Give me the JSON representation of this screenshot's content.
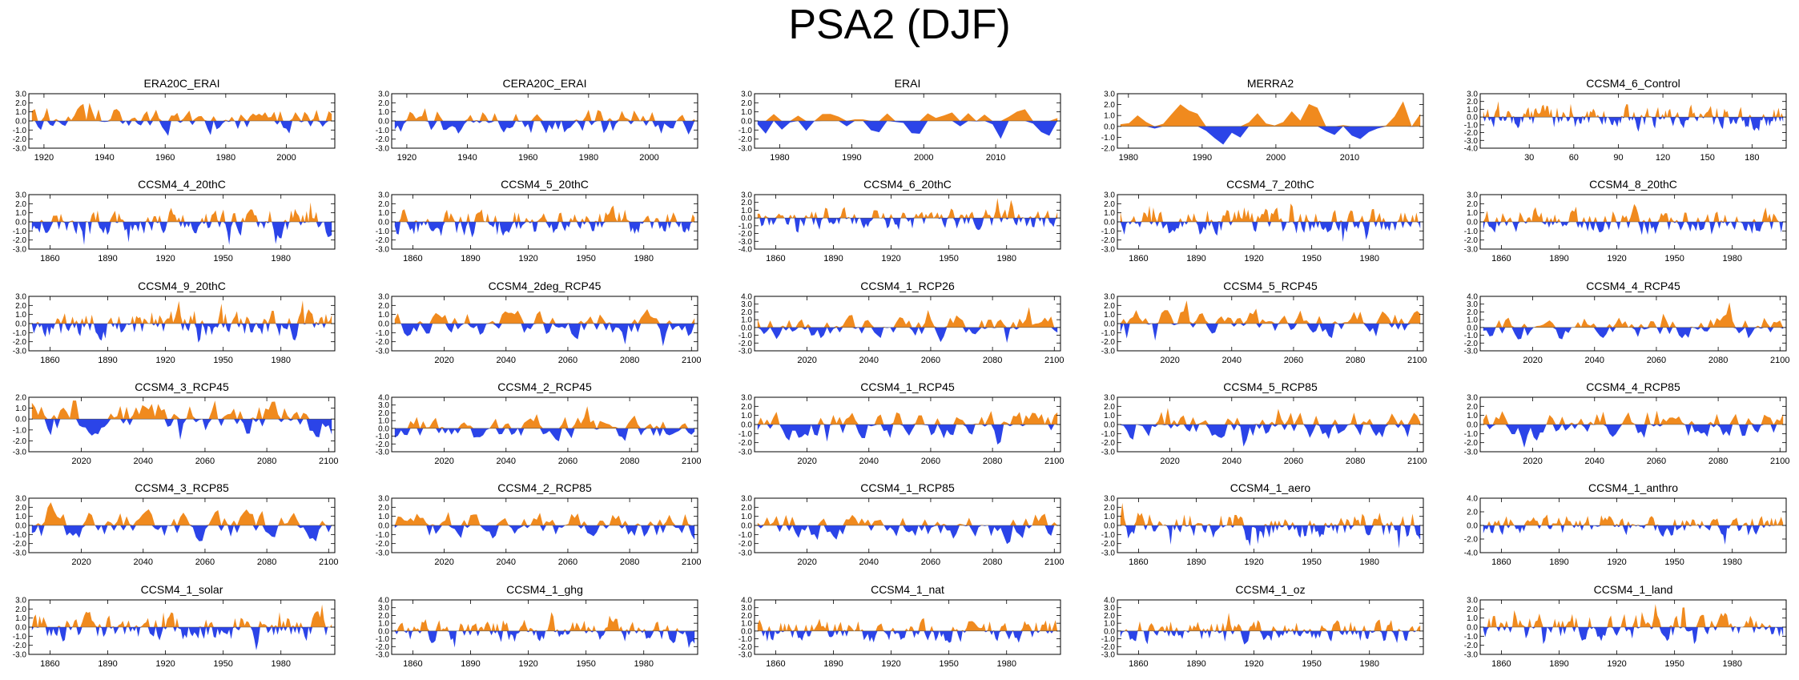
{
  "title": "PSA2 (DJF)",
  "colors": {
    "positive": "#f08a1e",
    "negative": "#2b44e8",
    "axis": "#000000"
  },
  "chart_data": [
    {
      "type": "area",
      "title": "ERA20C_ERAI",
      "xticks": [
        "1920",
        "1940",
        "1960",
        "1980",
        "2000"
      ],
      "xlim": [
        1915,
        2016
      ],
      "yticks": [
        "3.0",
        "2.0",
        "1.0",
        "0.0",
        "-1.0",
        "-2.0",
        "-3.0"
      ],
      "ylim": [
        -3,
        3
      ],
      "seed": 11,
      "n": 100
    },
    {
      "type": "area",
      "title": "CERA20C_ERAI",
      "xticks": [
        "1920",
        "1940",
        "1960",
        "1980",
        "2000"
      ],
      "xlim": [
        1915,
        2016
      ],
      "yticks": [
        "3.0",
        "2.0",
        "1.0",
        "0.0",
        "-1.0",
        "-2.0",
        "-3.0"
      ],
      "ylim": [
        -3,
        3
      ],
      "seed": 12,
      "n": 100
    },
    {
      "type": "area",
      "title": "ERAI",
      "xticks": [
        "1980",
        "1990",
        "2000",
        "2010"
      ],
      "xlim": [
        1976.5,
        2019
      ],
      "yticks": [
        "3.0",
        "2.0",
        "1.0",
        "0.0",
        "-1.0",
        "-2.0",
        "-3.0"
      ],
      "ylim": [
        -3,
        3
      ],
      "seed": 13,
      "n": 38
    },
    {
      "type": "area",
      "title": "MERRA2",
      "xticks": [
        "1980",
        "1990",
        "2000",
        "2010"
      ],
      "xlim": [
        1978.5,
        2020
      ],
      "yticks": [
        "3.0",
        "2.0",
        "1.0",
        "0.0",
        "-1.0",
        "-2.0"
      ],
      "ylim": [
        -2,
        3
      ],
      "seed": 14,
      "n": 36
    },
    {
      "type": "area",
      "title": "CCSM4_6_Control",
      "xticks": [
        "30",
        "60",
        "90",
        "120",
        "150",
        "180"
      ],
      "xlim": [
        -3,
        203
      ],
      "yticks": [
        "3.0",
        "2.0",
        "1.0",
        "0.0",
        "-1.0",
        "-2.0",
        "-3.0",
        "-4.0"
      ],
      "ylim": [
        -4,
        3
      ],
      "seed": 15,
      "n": 200
    },
    {
      "type": "area",
      "title": "CCSM4_4_20thC",
      "xticks": [
        "1860",
        "1890",
        "1920",
        "1950",
        "1980"
      ],
      "xlim": [
        1849,
        2008
      ],
      "yticks": [
        "3.0",
        "2.0",
        "1.0",
        "0.0",
        "-1.0",
        "-2.0",
        "-3.0"
      ],
      "ylim": [
        -3,
        3
      ],
      "seed": 21,
      "n": 156
    },
    {
      "type": "area",
      "title": "CCSM4_5_20thC",
      "xticks": [
        "1860",
        "1890",
        "1920",
        "1950",
        "1980"
      ],
      "xlim": [
        1849,
        2008
      ],
      "yticks": [
        "3.0",
        "2.0",
        "1.0",
        "0.0",
        "-1.0",
        "-2.0",
        "-3.0"
      ],
      "ylim": [
        -3,
        3
      ],
      "seed": 22,
      "n": 156
    },
    {
      "type": "area",
      "title": "CCSM4_6_20thC",
      "xticks": [
        "1860",
        "1890",
        "1920",
        "1950",
        "1980"
      ],
      "xlim": [
        1849,
        2008
      ],
      "yticks": [
        "3.0",
        "2.0",
        "1.0",
        "0.0",
        "-1.0",
        "-2.0",
        "-3.0",
        "-4.0"
      ],
      "ylim": [
        -4,
        3
      ],
      "seed": 23,
      "n": 156
    },
    {
      "type": "area",
      "title": "CCSM4_7_20thC",
      "xticks": [
        "1860",
        "1890",
        "1920",
        "1950",
        "1980"
      ],
      "xlim": [
        1849,
        2008
      ],
      "yticks": [
        "3.0",
        "2.0",
        "1.0",
        "0.0",
        "-1.0",
        "-2.0",
        "-3.0"
      ],
      "ylim": [
        -3,
        3
      ],
      "seed": 24,
      "n": 156
    },
    {
      "type": "area",
      "title": "CCSM4_8_20thC",
      "xticks": [
        "1860",
        "1890",
        "1920",
        "1950",
        "1980"
      ],
      "xlim": [
        1849,
        2008
      ],
      "yticks": [
        "3.0",
        "2.0",
        "1.0",
        "0.0",
        "-1.0",
        "-2.0",
        "-3.0"
      ],
      "ylim": [
        -3,
        3
      ],
      "seed": 25,
      "n": 156
    },
    {
      "type": "area",
      "title": "CCSM4_9_20thC",
      "xticks": [
        "1860",
        "1890",
        "1920",
        "1950",
        "1980"
      ],
      "xlim": [
        1849,
        2008
      ],
      "yticks": [
        "3.0",
        "2.0",
        "1.0",
        "0.0",
        "-1.0",
        "-2.0",
        "-3.0"
      ],
      "ylim": [
        -3,
        3
      ],
      "seed": 31,
      "n": 156
    },
    {
      "type": "area",
      "title": "CCSM4_2deg_RCP45",
      "xticks": [
        "2020",
        "2040",
        "2060",
        "2080",
        "2100"
      ],
      "xlim": [
        2003,
        2102
      ],
      "yticks": [
        "3.0",
        "2.0",
        "1.0",
        "0.0",
        "-1.0",
        "-2.0",
        "-3.0"
      ],
      "ylim": [
        -3,
        3
      ],
      "seed": 32,
      "n": 96
    },
    {
      "type": "area",
      "title": "CCSM4_1_RCP26",
      "xticks": [
        "2020",
        "2040",
        "2060",
        "2080",
        "2100"
      ],
      "xlim": [
        2003,
        2102
      ],
      "yticks": [
        "4.0",
        "3.0",
        "2.0",
        "1.0",
        "0.0",
        "-1.0",
        "-2.0",
        "-3.0"
      ],
      "ylim": [
        -3,
        4
      ],
      "seed": 33,
      "n": 96
    },
    {
      "type": "area",
      "title": "CCSM4_5_RCP45",
      "xticks": [
        "2020",
        "2040",
        "2060",
        "2080",
        "2100"
      ],
      "xlim": [
        2003,
        2102
      ],
      "yticks": [
        "3.0",
        "2.0",
        "1.0",
        "0.0",
        "-1.0",
        "-2.0",
        "-3.0"
      ],
      "ylim": [
        -3,
        3
      ],
      "seed": 34,
      "n": 96
    },
    {
      "type": "area",
      "title": "CCSM4_4_RCP45",
      "xticks": [
        "2020",
        "2040",
        "2060",
        "2080",
        "2100"
      ],
      "xlim": [
        2003,
        2102
      ],
      "yticks": [
        "4.0",
        "3.0",
        "2.0",
        "1.0",
        "0.0",
        "-1.0",
        "-2.0",
        "-3.0"
      ],
      "ylim": [
        -3,
        4
      ],
      "seed": 35,
      "n": 96
    },
    {
      "type": "area",
      "title": "CCSM4_3_RCP45",
      "xticks": [
        "2020",
        "2040",
        "2060",
        "2080",
        "2100"
      ],
      "xlim": [
        2003,
        2102
      ],
      "yticks": [
        "2.0",
        "1.0",
        "0.0",
        "-1.0",
        "-2.0",
        "-3.0"
      ],
      "ylim": [
        -3,
        2
      ],
      "seed": 41,
      "n": 96
    },
    {
      "type": "area",
      "title": "CCSM4_2_RCP45",
      "xticks": [
        "2020",
        "2040",
        "2060",
        "2080",
        "2100"
      ],
      "xlim": [
        2003,
        2102
      ],
      "yticks": [
        "4.0",
        "3.0",
        "2.0",
        "1.0",
        "0.0",
        "-1.0",
        "-2.0",
        "-3.0"
      ],
      "ylim": [
        -3,
        4
      ],
      "seed": 42,
      "n": 96
    },
    {
      "type": "area",
      "title": "CCSM4_1_RCP45",
      "xticks": [
        "2020",
        "2040",
        "2060",
        "2080",
        "2100"
      ],
      "xlim": [
        2003,
        2102
      ],
      "yticks": [
        "3.0",
        "2.0",
        "1.0",
        "0.0",
        "-1.0",
        "-2.0",
        "-3.0"
      ],
      "ylim": [
        -3,
        3
      ],
      "seed": 43,
      "n": 96
    },
    {
      "type": "area",
      "title": "CCSM4_5_RCP85",
      "xticks": [
        "2020",
        "2040",
        "2060",
        "2080",
        "2100"
      ],
      "xlim": [
        2003,
        2102
      ],
      "yticks": [
        "3.0",
        "2.0",
        "1.0",
        "0.0",
        "-1.0",
        "-2.0",
        "-3.0"
      ],
      "ylim": [
        -3,
        3
      ],
      "seed": 44,
      "n": 96
    },
    {
      "type": "area",
      "title": "CCSM4_4_RCP85",
      "xticks": [
        "2020",
        "2040",
        "2060",
        "2080",
        "2100"
      ],
      "xlim": [
        2003,
        2102
      ],
      "yticks": [
        "3.0",
        "2.0",
        "1.0",
        "0.0",
        "-1.0",
        "-2.0",
        "-3.0"
      ],
      "ylim": [
        -3,
        3
      ],
      "seed": 45,
      "n": 96
    },
    {
      "type": "area",
      "title": "CCSM4_3_RCP85",
      "xticks": [
        "2020",
        "2040",
        "2060",
        "2080",
        "2100"
      ],
      "xlim": [
        2003,
        2102
      ],
      "yticks": [
        "3.0",
        "2.0",
        "1.0",
        "0.0",
        "-1.0",
        "-2.0",
        "-3.0"
      ],
      "ylim": [
        -3,
        3
      ],
      "seed": 51,
      "n": 96
    },
    {
      "type": "area",
      "title": "CCSM4_2_RCP85",
      "xticks": [
        "2020",
        "2040",
        "2060",
        "2080",
        "2100"
      ],
      "xlim": [
        2003,
        2102
      ],
      "yticks": [
        "3.0",
        "2.0",
        "1.0",
        "0.0",
        "-1.0",
        "-2.0",
        "-3.0"
      ],
      "ylim": [
        -3,
        3
      ],
      "seed": 52,
      "n": 96
    },
    {
      "type": "area",
      "title": "CCSM4_1_RCP85",
      "xticks": [
        "2020",
        "2040",
        "2060",
        "2080",
        "2100"
      ],
      "xlim": [
        2003,
        2102
      ],
      "yticks": [
        "3.0",
        "2.0",
        "1.0",
        "0.0",
        "-1.0",
        "-2.0",
        "-3.0"
      ],
      "ylim": [
        -3,
        3
      ],
      "seed": 53,
      "n": 96
    },
    {
      "type": "area",
      "title": "CCSM4_1_aero",
      "xticks": [
        "1860",
        "1890",
        "1920",
        "1950",
        "1980"
      ],
      "xlim": [
        1849,
        2008
      ],
      "yticks": [
        "3.0",
        "2.0",
        "1.0",
        "0.0",
        "-1.0",
        "-2.0",
        "-3.0"
      ],
      "ylim": [
        -3,
        3
      ],
      "seed": 54,
      "n": 156
    },
    {
      "type": "area",
      "title": "CCSM4_1_anthro",
      "xticks": [
        "1860",
        "1890",
        "1920",
        "1950",
        "1980"
      ],
      "xlim": [
        1849,
        2008
      ],
      "yticks": [
        "4.0",
        "2.0",
        "0.0",
        "-2.0",
        "-4.0"
      ],
      "ylim": [
        -4,
        4
      ],
      "seed": 55,
      "n": 156
    },
    {
      "type": "area",
      "title": "CCSM4_1_solar",
      "xticks": [
        "1860",
        "1890",
        "1920",
        "1950",
        "1980"
      ],
      "xlim": [
        1849,
        2008
      ],
      "yticks": [
        "3.0",
        "2.0",
        "1.0",
        "0.0",
        "-1.0",
        "-2.0",
        "-3.0"
      ],
      "ylim": [
        -3,
        3
      ],
      "seed": 61,
      "n": 156
    },
    {
      "type": "area",
      "title": "CCSM4_1_ghg",
      "xticks": [
        "1860",
        "1890",
        "1920",
        "1950",
        "1980"
      ],
      "xlim": [
        1849,
        2008
      ],
      "yticks": [
        "4.0",
        "3.0",
        "2.0",
        "1.0",
        "0.0",
        "-1.0",
        "-2.0",
        "-3.0"
      ],
      "ylim": [
        -3,
        4
      ],
      "seed": 62,
      "n": 156
    },
    {
      "type": "area",
      "title": "CCSM4_1_nat",
      "xticks": [
        "1860",
        "1890",
        "1920",
        "1950",
        "1980"
      ],
      "xlim": [
        1849,
        2008
      ],
      "yticks": [
        "4.0",
        "3.0",
        "2.0",
        "1.0",
        "0.0",
        "-1.0",
        "-2.0",
        "-3.0"
      ],
      "ylim": [
        -3,
        4
      ],
      "seed": 63,
      "n": 156
    },
    {
      "type": "area",
      "title": "CCSM4_1_oz",
      "xticks": [
        "1860",
        "1890",
        "1920",
        "1950",
        "1980"
      ],
      "xlim": [
        1849,
        2008
      ],
      "yticks": [
        "4.0",
        "3.0",
        "2.0",
        "1.0",
        "0.0",
        "-1.0",
        "-2.0",
        "-3.0"
      ],
      "ylim": [
        -3,
        4
      ],
      "seed": 64,
      "n": 156
    },
    {
      "type": "area",
      "title": "CCSM4_1_land",
      "xticks": [
        "1860",
        "1890",
        "1920",
        "1950",
        "1980"
      ],
      "xlim": [
        1849,
        2008
      ],
      "yticks": [
        "3.0",
        "2.0",
        "1.0",
        "0.0",
        "-1.0",
        "-2.0",
        "-3.0"
      ],
      "ylim": [
        -3,
        3
      ],
      "seed": 65,
      "n": 156
    }
  ]
}
